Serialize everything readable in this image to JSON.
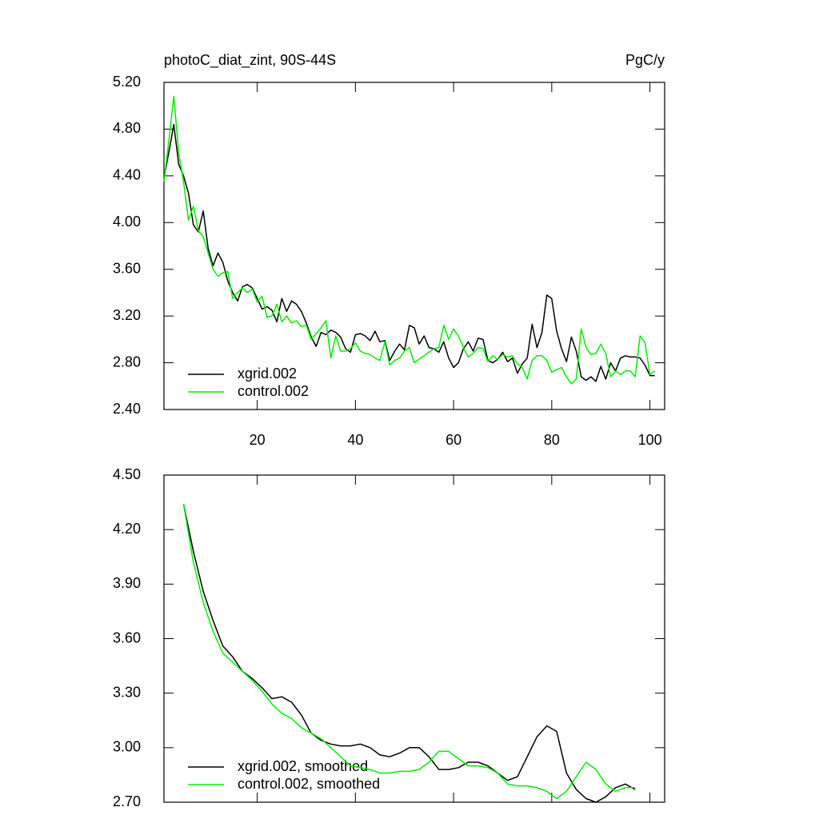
{
  "chart_data": [
    {
      "type": "line",
      "title": "photoC_diat_zint, 90S-44S",
      "units": "PgC/y",
      "x": [
        1,
        2,
        3,
        4,
        5,
        6,
        7,
        8,
        9,
        10,
        11,
        12,
        13,
        14,
        15,
        16,
        17,
        18,
        19,
        20,
        21,
        22,
        23,
        24,
        25,
        26,
        27,
        28,
        29,
        30,
        31,
        32,
        33,
        34,
        35,
        36,
        37,
        38,
        39,
        40,
        41,
        42,
        43,
        44,
        45,
        46,
        47,
        48,
        49,
        50,
        51,
        52,
        53,
        54,
        55,
        56,
        57,
        58,
        59,
        60,
        61,
        62,
        63,
        64,
        65,
        66,
        67,
        68,
        69,
        70,
        71,
        72,
        73,
        74,
        75,
        76,
        77,
        78,
        79,
        80,
        81,
        82,
        83,
        84,
        85,
        86,
        87,
        88,
        89,
        90,
        91,
        92,
        93,
        94,
        95,
        96,
        97,
        98,
        99,
        100,
        101
      ],
      "series": [
        {
          "name": "xgrid.002",
          "color": "#000000",
          "values": [
            4.38,
            4.6,
            4.84,
            4.5,
            4.4,
            4.25,
            3.98,
            3.92,
            4.1,
            3.78,
            3.63,
            3.74,
            3.66,
            3.5,
            3.4,
            3.33,
            3.45,
            3.47,
            3.44,
            3.35,
            3.26,
            3.28,
            3.25,
            3.15,
            3.35,
            3.24,
            3.33,
            3.3,
            3.24,
            3.14,
            3.02,
            2.94,
            3.06,
            3.04,
            3.08,
            3.06,
            3.02,
            2.92,
            2.89,
            3.04,
            3.05,
            3.03,
            2.99,
            3.07,
            2.98,
            2.99,
            2.82,
            2.9,
            2.96,
            2.91,
            3.12,
            3.1,
            2.96,
            3.03,
            2.93,
            2.92,
            2.89,
            2.98,
            2.84,
            2.76,
            2.8,
            2.92,
            2.98,
            2.9,
            3.01,
            3.0,
            2.82,
            2.8,
            2.83,
            2.89,
            2.81,
            2.84,
            2.71,
            2.79,
            2.84,
            3.13,
            2.93,
            3.06,
            3.38,
            3.35,
            3.07,
            2.92,
            2.81,
            3.02,
            2.9,
            2.68,
            2.65,
            2.68,
            2.64,
            2.77,
            2.66,
            2.8,
            2.73,
            2.84,
            2.86,
            2.85,
            2.85,
            2.84,
            2.78,
            2.69,
            2.69
          ]
        },
        {
          "name": "control.002",
          "color": "#00ee00",
          "values": [
            4.35,
            4.7,
            5.08,
            4.6,
            4.35,
            4.02,
            4.14,
            3.93,
            3.88,
            3.74,
            3.6,
            3.54,
            3.57,
            3.58,
            3.35,
            3.4,
            3.44,
            3.4,
            3.43,
            3.32,
            3.37,
            3.19,
            3.2,
            3.3,
            3.15,
            3.2,
            3.14,
            3.16,
            3.11,
            3.12,
            3.0,
            3.05,
            3.1,
            3.16,
            2.84,
            3.03,
            2.9,
            2.9,
            2.92,
            2.97,
            2.9,
            2.88,
            2.87,
            2.84,
            2.82,
            2.98,
            2.78,
            2.82,
            2.84,
            2.9,
            2.93,
            2.8,
            2.83,
            2.86,
            2.89,
            2.92,
            2.93,
            3.12,
            3.0,
            3.09,
            3.03,
            2.93,
            2.85,
            2.88,
            2.93,
            2.92,
            2.81,
            2.86,
            2.83,
            2.87,
            2.85,
            2.86,
            2.79,
            2.76,
            2.66,
            2.82,
            2.86,
            2.86,
            2.82,
            2.72,
            2.74,
            2.76,
            2.68,
            2.62,
            2.66,
            3.09,
            2.93,
            2.87,
            2.88,
            2.96,
            2.88,
            2.68,
            2.73,
            2.7,
            2.73,
            2.73,
            2.68,
            3.03,
            2.97,
            2.7,
            2.73
          ]
        }
      ],
      "xlim": [
        1,
        103
      ],
      "xticks": [
        20,
        40,
        60,
        80,
        100
      ],
      "xtick_labels": true,
      "ylim": [
        2.4,
        5.2
      ],
      "yticks": [
        {
          "value": 2.4,
          "label": "2.40"
        },
        {
          "value": 2.8,
          "label": "2.80"
        },
        {
          "value": 3.2,
          "label": "3.20"
        },
        {
          "value": 3.6,
          "label": "3.60"
        },
        {
          "value": 4.0,
          "label": "4.00"
        },
        {
          "value": 4.4,
          "label": "4.40"
        },
        {
          "value": 4.8,
          "label": "4.80"
        },
        {
          "value": 5.2,
          "label": "5.20"
        }
      ],
      "legend": "lower left",
      "grid": false
    },
    {
      "type": "line",
      "x": [
        5,
        7,
        9,
        11,
        13,
        15,
        17,
        19,
        21,
        23,
        25,
        27,
        29,
        31,
        33,
        35,
        37,
        39,
        41,
        43,
        45,
        47,
        49,
        51,
        53,
        55,
        57,
        59,
        61,
        63,
        65,
        67,
        69,
        71,
        73,
        75,
        77,
        79,
        81,
        83,
        85,
        87,
        89,
        91,
        93,
        95,
        97
      ],
      "series": [
        {
          "name": "xgrid.002, smoothed",
          "color": "#000000",
          "values": [
            4.34,
            4.08,
            3.86,
            3.7,
            3.56,
            3.5,
            3.42,
            3.38,
            3.33,
            3.27,
            3.28,
            3.25,
            3.18,
            3.08,
            3.04,
            3.02,
            3.01,
            3.01,
            3.02,
            3.0,
            2.96,
            2.95,
            2.97,
            3.0,
            3.0,
            2.95,
            2.88,
            2.88,
            2.89,
            2.92,
            2.92,
            2.9,
            2.86,
            2.82,
            2.84,
            2.95,
            3.06,
            3.12,
            3.09,
            2.86,
            2.77,
            2.72,
            2.7,
            2.73,
            2.78,
            2.8,
            2.77
          ]
        },
        {
          "name": "control.002, smoothed",
          "color": "#00ee00",
          "values": [
            4.34,
            4.02,
            3.8,
            3.64,
            3.52,
            3.47,
            3.42,
            3.37,
            3.31,
            3.24,
            3.19,
            3.16,
            3.11,
            3.08,
            3.05,
            3.0,
            2.95,
            2.9,
            2.89,
            2.88,
            2.86,
            2.86,
            2.87,
            2.87,
            2.88,
            2.92,
            2.98,
            2.98,
            2.94,
            2.9,
            2.9,
            2.89,
            2.86,
            2.8,
            2.79,
            2.79,
            2.78,
            2.76,
            2.72,
            2.76,
            2.84,
            2.92,
            2.88,
            2.8,
            2.76,
            2.78,
            2.78
          ]
        }
      ],
      "xlim": [
        1,
        103
      ],
      "xticks": [
        20,
        40,
        60,
        80,
        100
      ],
      "xtick_labels": false,
      "ylim": [
        2.7,
        4.5
      ],
      "yticks": [
        {
          "value": 2.7,
          "label": "2.70"
        },
        {
          "value": 3.0,
          "label": "3.00"
        },
        {
          "value": 3.3,
          "label": "3.30"
        },
        {
          "value": 3.6,
          "label": "3.60"
        },
        {
          "value": 3.9,
          "label": "3.90"
        },
        {
          "value": 4.2,
          "label": "4.20"
        },
        {
          "value": 4.5,
          "label": "4.50"
        }
      ],
      "legend": "lower left",
      "grid": false
    }
  ]
}
